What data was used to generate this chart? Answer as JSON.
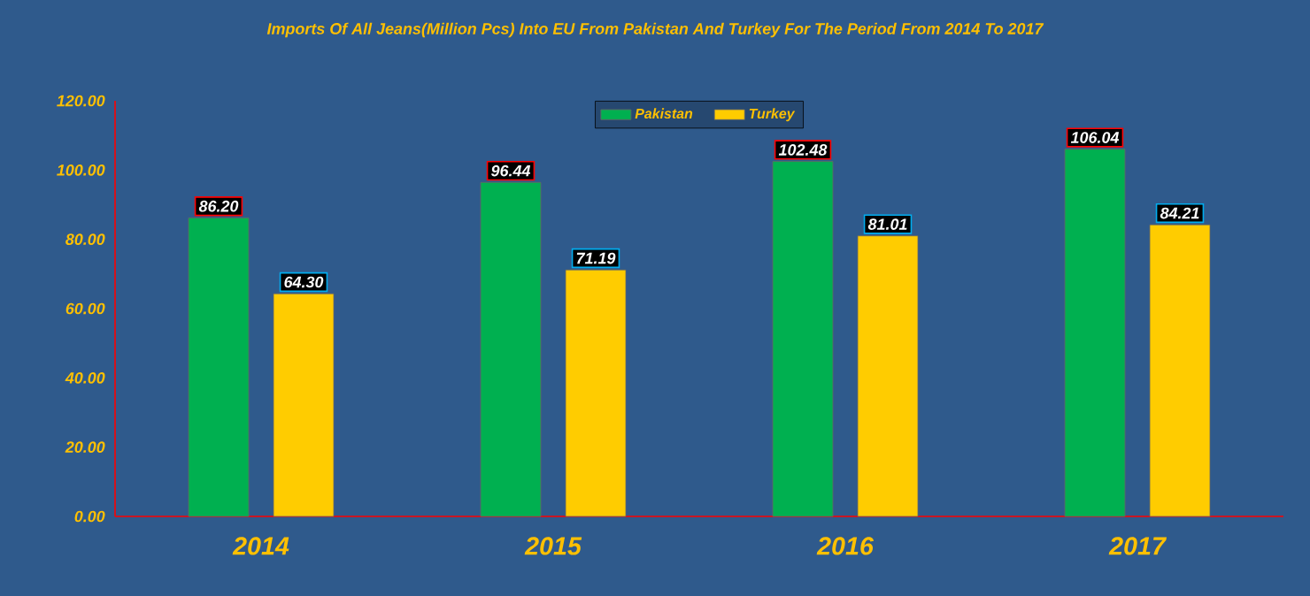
{
  "chart_data": {
    "type": "bar",
    "title": "Imports Of All Jeans(Million Pcs) Into EU From Pakistan And Turkey For The Period From 2014 To 2017",
    "categories": [
      "2014",
      "2015",
      "2016",
      "2017"
    ],
    "series": [
      {
        "name": "Pakistan",
        "color": "#00b050",
        "values": [
          86.2,
          96.44,
          102.48,
          106.04
        ],
        "value_labels": [
          "86.20",
          "96.44",
          "102.48",
          "106.04"
        ]
      },
      {
        "name": "Turkey",
        "color": "#ffcc00",
        "values": [
          64.3,
          71.19,
          81.01,
          84.21
        ],
        "value_labels": [
          "64.30",
          "71.19",
          "81.01",
          "84.21"
        ]
      }
    ],
    "ylim": [
      0,
      120
    ],
    "yticks": [
      {
        "value": 0,
        "label": "0.00"
      },
      {
        "value": 20,
        "label": "20.00"
      },
      {
        "value": 40,
        "label": "40.00"
      },
      {
        "value": 60,
        "label": "60.00"
      },
      {
        "value": 80,
        "label": "80.00"
      },
      {
        "value": 100,
        "label": "100.00"
      },
      {
        "value": 120,
        "label": "120.00"
      }
    ],
    "grid": false,
    "legend": "top"
  }
}
